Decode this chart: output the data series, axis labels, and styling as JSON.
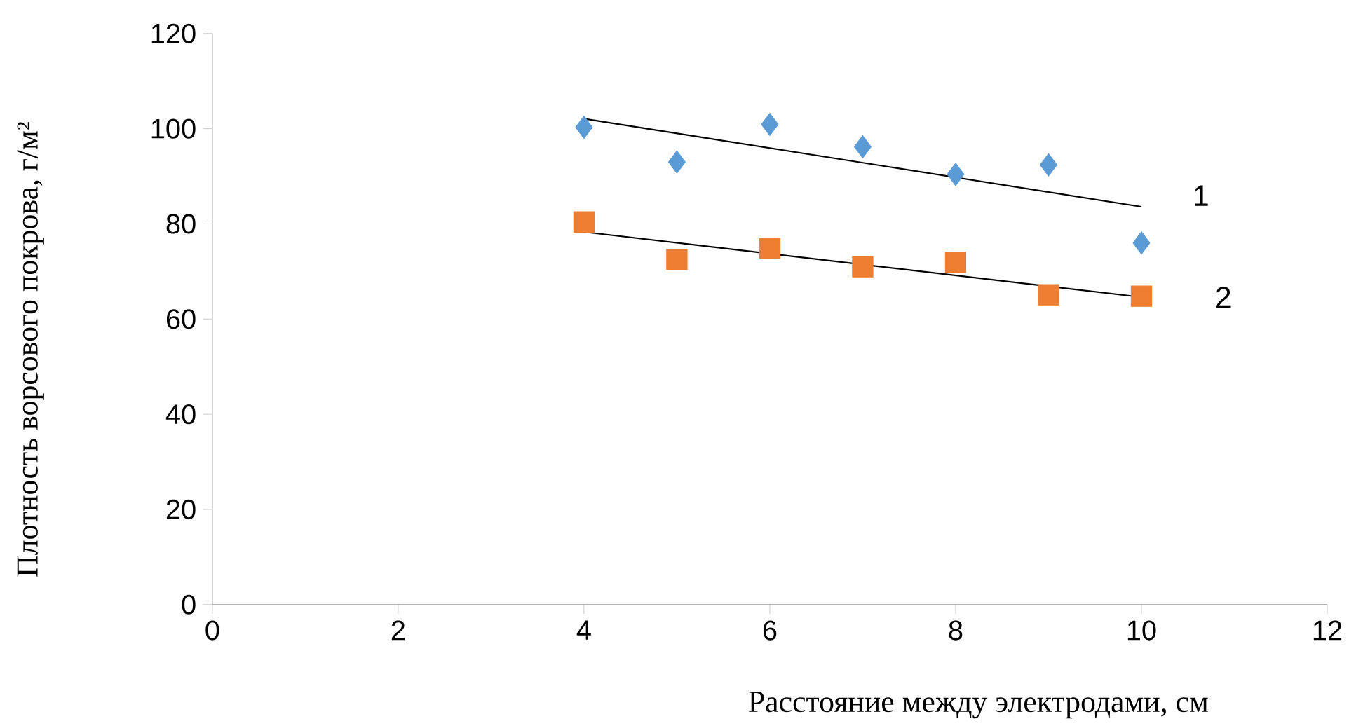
{
  "chart_data": {
    "type": "scatter",
    "xlabel": "Расстояние между электродами, см",
    "ylabel": "Плотность ворсового покрова, г/м²",
    "xlim": [
      0,
      12
    ],
    "xticks": [
      0,
      2,
      4,
      6,
      8,
      10,
      12
    ],
    "ylim": [
      0,
      120
    ],
    "yticks": [
      0,
      20,
      40,
      60,
      80,
      100,
      120
    ],
    "series": [
      {
        "color": "#5b9bd5",
        "marker": "diamond",
        "x": [
          4,
          5,
          6,
          7,
          8,
          9,
          10
        ],
        "values": [
          100.3,
          93.0,
          100.9,
          96.2,
          90.4,
          92.4,
          76.0
        ]
      },
      {
        "color": "#ed7d31",
        "marker": "square",
        "x": [
          4,
          5,
          6,
          7,
          8,
          9,
          10
        ],
        "values": [
          80.4,
          72.5,
          74.8,
          71.0,
          71.9,
          65.1,
          64.8
        ]
      },
      {
        "type": "line",
        "name": "1",
        "color": "#000000",
        "marker": "none",
        "x": [
          4,
          10
        ],
        "values": [
          102.1,
          83.6
        ]
      },
      {
        "type": "line",
        "name": "2",
        "color": "#000000",
        "marker": "none",
        "x": [
          4,
          10
        ],
        "values": [
          78.3,
          64.6
        ]
      }
    ]
  }
}
